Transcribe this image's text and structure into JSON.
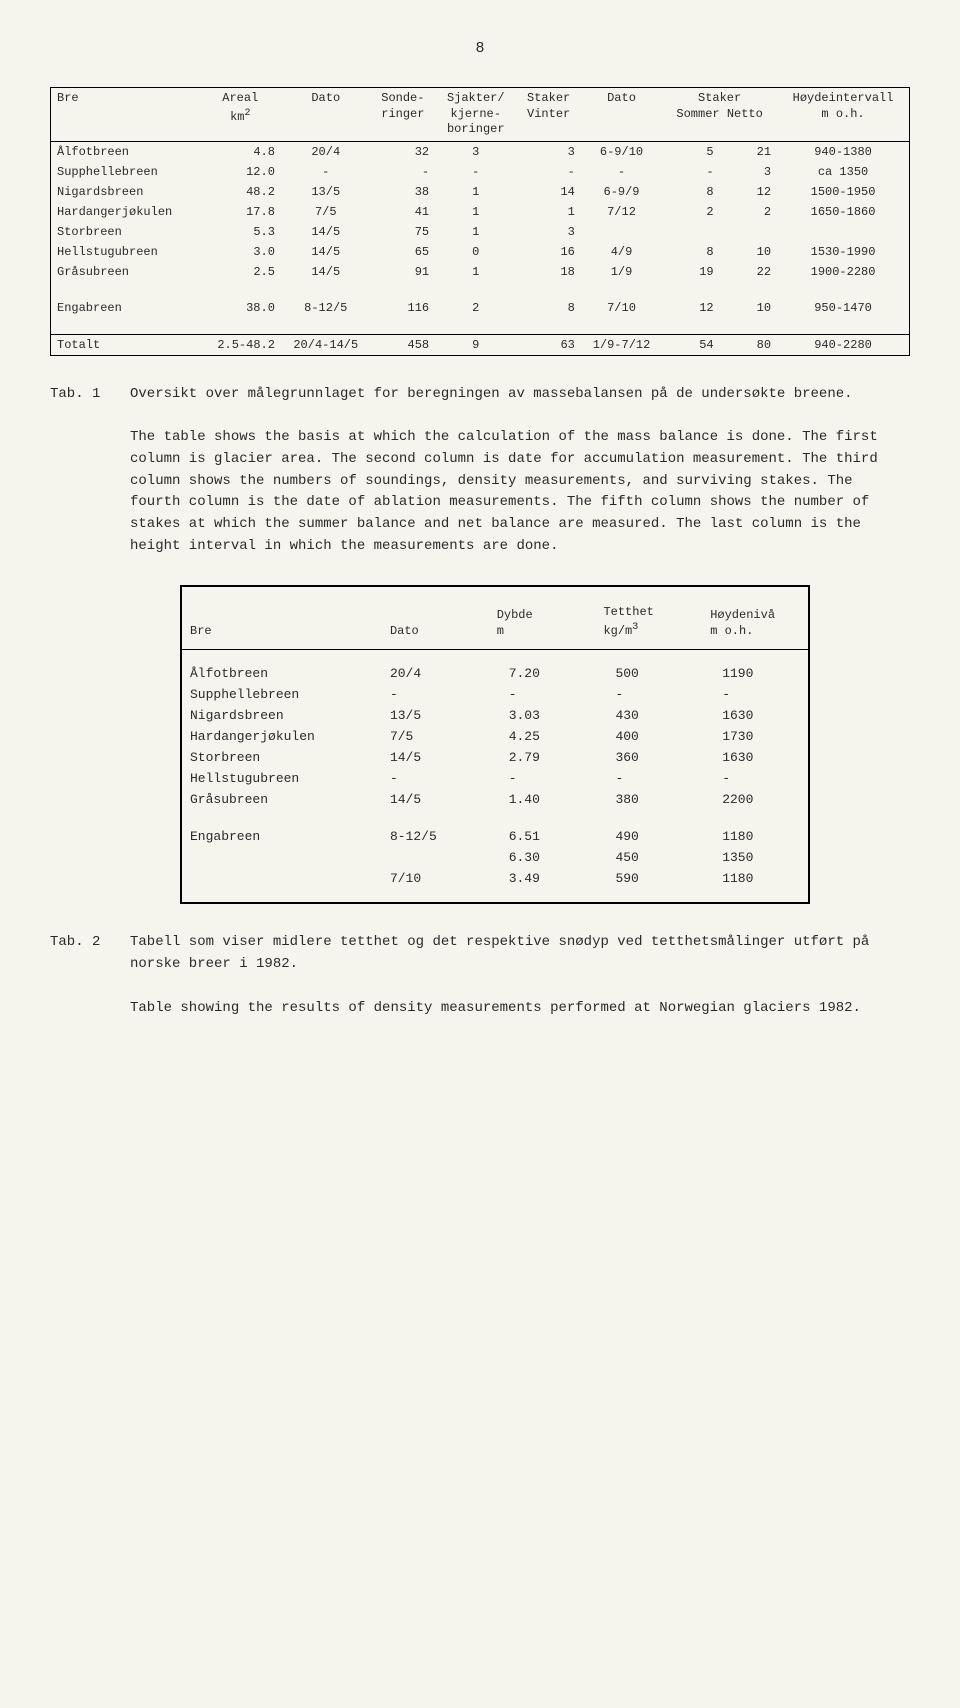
{
  "page_number": "8",
  "table1": {
    "headers": {
      "bre": "Bre",
      "areal": "Areal\nkm²",
      "dato1": "Dato",
      "sonde": "Sonde-\nringer",
      "sjakter": "Sjakter/\nkjerne-\nboringer",
      "staker_v": "Staker\nVinter",
      "dato2": "Dato",
      "staker_s": "Staker\nSommer Netto",
      "hoyde": "Høydeintervall\nm o.h."
    },
    "rows": [
      {
        "bre": "Ålfotbreen",
        "areal": "4.8",
        "dato1": "20/4",
        "sonde": "32",
        "sjakter": "3",
        "stakerv": "3",
        "dato2": "6-9/10",
        "sommer": "5",
        "netto": "21",
        "hoyde": "940-1380"
      },
      {
        "bre": "Supphellebreen",
        "areal": "12.0",
        "dato1": "-",
        "sonde": "-",
        "sjakter": "-",
        "stakerv": "-",
        "dato2": "-",
        "sommer": "-",
        "netto": "3",
        "hoyde": "ca 1350"
      },
      {
        "bre": "Nigardsbreen",
        "areal": "48.2",
        "dato1": "13/5",
        "sonde": "38",
        "sjakter": "1",
        "stakerv": "14",
        "dato2": "6-9/9",
        "sommer": "8",
        "netto": "12",
        "hoyde": "1500-1950"
      },
      {
        "bre": "Hardangerjøkulen",
        "areal": "17.8",
        "dato1": "7/5",
        "sonde": "41",
        "sjakter": "1",
        "stakerv": "1",
        "dato2": "7/12",
        "sommer": "2",
        "netto": "2",
        "hoyde": "1650-1860"
      },
      {
        "bre": "Storbreen",
        "areal": "5.3",
        "dato1": "14/5",
        "sonde": "75",
        "sjakter": "1",
        "stakerv": "3",
        "dato2": "",
        "sommer": "",
        "netto": "",
        "hoyde": ""
      },
      {
        "bre": "Hellstugubreen",
        "areal": "3.0",
        "dato1": "14/5",
        "sonde": "65",
        "sjakter": "0",
        "stakerv": "16",
        "dato2": "4/9",
        "sommer": "8",
        "netto": "10",
        "hoyde": "1530-1990"
      },
      {
        "bre": "Gråsubreen",
        "areal": "2.5",
        "dato1": "14/5",
        "sonde": "91",
        "sjakter": "1",
        "stakerv": "18",
        "dato2": "1/9",
        "sommer": "19",
        "netto": "22",
        "hoyde": "1900-2280"
      }
    ],
    "engabreen": {
      "bre": "Engabreen",
      "areal": "38.0",
      "dato1": "8-12/5",
      "sonde": "116",
      "sjakter": "2",
      "stakerv": "8",
      "dato2": "7/10",
      "sommer": "12",
      "netto": "10",
      "hoyde": "950-1470"
    },
    "totalt": {
      "bre": "Totalt",
      "areal": "2.5-48.2",
      "dato1": "20/4-14/5",
      "sonde": "458",
      "sjakter": "9",
      "stakerv": "63",
      "dato2": "1/9-7/12",
      "sommer": "54",
      "netto": "80",
      "hoyde": "940-2280"
    }
  },
  "caption1": {
    "label": "Tab. 1",
    "para1": "Oversikt over målegrunnlaget for beregningen av massebalansen på de undersøkte breene.",
    "para2": "The table shows the basis at which the calculation of the mass balance is done.  The first column is glacier area. The second column is date for accumulation measurement. The third column shows the numbers of soundings, density measurements, and surviving stakes.  The fourth column is the date of ablation measurements.  The fifth column shows the number of stakes at which the summer balance and net balance are measured.  The last column is the height interval in which the measurements are done."
  },
  "table2": {
    "headers": {
      "bre": "Bre",
      "dato": "Dato",
      "dybde": "Dybde\nm",
      "tetthet": "Tetthet\nkg/m³",
      "hoyde": "Høydenivå\nm o.h."
    },
    "rows": [
      {
        "bre": "Ålfotbreen",
        "dato": "20/4",
        "dybde": "7.20",
        "tetthet": "500",
        "hoyde": "1190"
      },
      {
        "bre": "Supphellebreen",
        "dato": "-",
        "dybde": "-",
        "tetthet": "-",
        "hoyde": "-"
      },
      {
        "bre": "Nigardsbreen",
        "dato": "13/5",
        "dybde": "3.03",
        "tetthet": "430",
        "hoyde": "1630"
      },
      {
        "bre": "Hardangerjøkulen",
        "dato": "7/5",
        "dybde": "4.25",
        "tetthet": "400",
        "hoyde": "1730"
      },
      {
        "bre": "Storbreen",
        "dato": "14/5",
        "dybde": "2.79",
        "tetthet": "360",
        "hoyde": "1630"
      },
      {
        "bre": "Hellstugubreen",
        "dato": "-",
        "dybde": "-",
        "tetthet": "-",
        "hoyde": "-"
      },
      {
        "bre": "Gråsubreen",
        "dato": "14/5",
        "dybde": "1.40",
        "tetthet": "380",
        "hoyde": "2200"
      }
    ],
    "engabreen": [
      {
        "bre": "Engabreen",
        "dato": "8-12/5",
        "dybde": "6.51",
        "tetthet": "490",
        "hoyde": "1180"
      },
      {
        "bre": "",
        "dato": "",
        "dybde": "6.30",
        "tetthet": "450",
        "hoyde": "1350"
      },
      {
        "bre": "",
        "dato": "7/10",
        "dybde": "3.49",
        "tetthet": "590",
        "hoyde": "1180"
      }
    ]
  },
  "caption2": {
    "label": "Tab. 2",
    "para1": "Tabell som viser midlere tetthet og det respektive snødyp ved tetthetsmålinger utført på norske breer i 1982.",
    "para2": "Table showing the results of density measurements performed at Norwegian glaciers 1982."
  }
}
